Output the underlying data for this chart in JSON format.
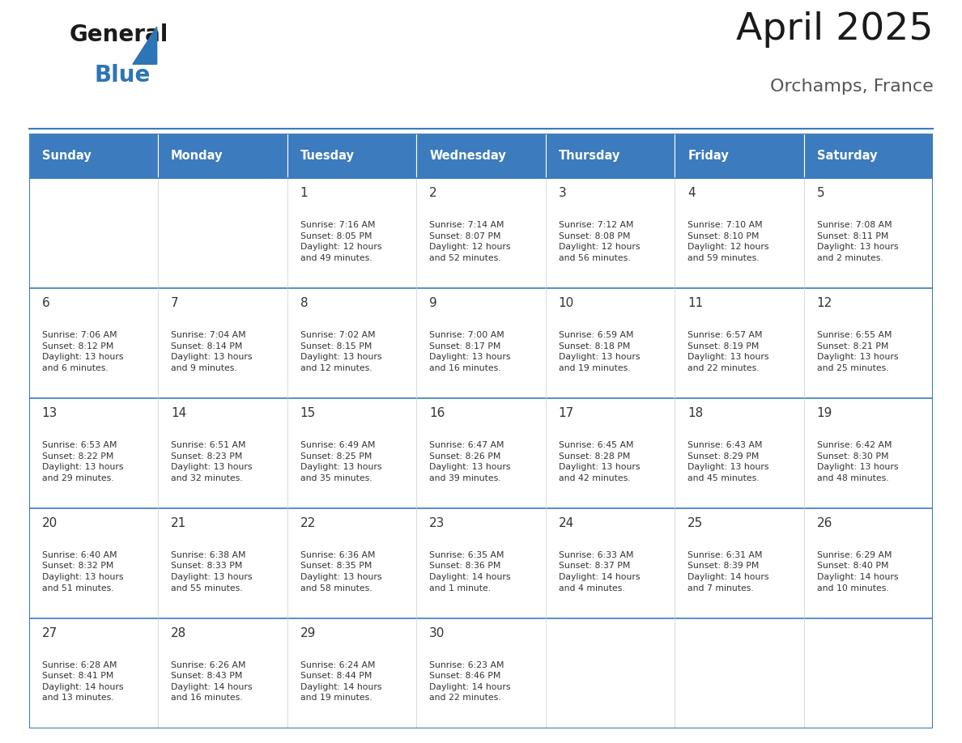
{
  "title": "April 2025",
  "subtitle": "Orchamps, France",
  "header_color": "#3B7BBE",
  "header_text_color": "#FFFFFF",
  "border_color": "#3B7BBE",
  "day_names": [
    "Sunday",
    "Monday",
    "Tuesday",
    "Wednesday",
    "Thursday",
    "Friday",
    "Saturday"
  ],
  "weeks": [
    [
      {
        "day": "",
        "info": ""
      },
      {
        "day": "",
        "info": ""
      },
      {
        "day": "1",
        "info": "Sunrise: 7:16 AM\nSunset: 8:05 PM\nDaylight: 12 hours\nand 49 minutes."
      },
      {
        "day": "2",
        "info": "Sunrise: 7:14 AM\nSunset: 8:07 PM\nDaylight: 12 hours\nand 52 minutes."
      },
      {
        "day": "3",
        "info": "Sunrise: 7:12 AM\nSunset: 8:08 PM\nDaylight: 12 hours\nand 56 minutes."
      },
      {
        "day": "4",
        "info": "Sunrise: 7:10 AM\nSunset: 8:10 PM\nDaylight: 12 hours\nand 59 minutes."
      },
      {
        "day": "5",
        "info": "Sunrise: 7:08 AM\nSunset: 8:11 PM\nDaylight: 13 hours\nand 2 minutes."
      }
    ],
    [
      {
        "day": "6",
        "info": "Sunrise: 7:06 AM\nSunset: 8:12 PM\nDaylight: 13 hours\nand 6 minutes."
      },
      {
        "day": "7",
        "info": "Sunrise: 7:04 AM\nSunset: 8:14 PM\nDaylight: 13 hours\nand 9 minutes."
      },
      {
        "day": "8",
        "info": "Sunrise: 7:02 AM\nSunset: 8:15 PM\nDaylight: 13 hours\nand 12 minutes."
      },
      {
        "day": "9",
        "info": "Sunrise: 7:00 AM\nSunset: 8:17 PM\nDaylight: 13 hours\nand 16 minutes."
      },
      {
        "day": "10",
        "info": "Sunrise: 6:59 AM\nSunset: 8:18 PM\nDaylight: 13 hours\nand 19 minutes."
      },
      {
        "day": "11",
        "info": "Sunrise: 6:57 AM\nSunset: 8:19 PM\nDaylight: 13 hours\nand 22 minutes."
      },
      {
        "day": "12",
        "info": "Sunrise: 6:55 AM\nSunset: 8:21 PM\nDaylight: 13 hours\nand 25 minutes."
      }
    ],
    [
      {
        "day": "13",
        "info": "Sunrise: 6:53 AM\nSunset: 8:22 PM\nDaylight: 13 hours\nand 29 minutes."
      },
      {
        "day": "14",
        "info": "Sunrise: 6:51 AM\nSunset: 8:23 PM\nDaylight: 13 hours\nand 32 minutes."
      },
      {
        "day": "15",
        "info": "Sunrise: 6:49 AM\nSunset: 8:25 PM\nDaylight: 13 hours\nand 35 minutes."
      },
      {
        "day": "16",
        "info": "Sunrise: 6:47 AM\nSunset: 8:26 PM\nDaylight: 13 hours\nand 39 minutes."
      },
      {
        "day": "17",
        "info": "Sunrise: 6:45 AM\nSunset: 8:28 PM\nDaylight: 13 hours\nand 42 minutes."
      },
      {
        "day": "18",
        "info": "Sunrise: 6:43 AM\nSunset: 8:29 PM\nDaylight: 13 hours\nand 45 minutes."
      },
      {
        "day": "19",
        "info": "Sunrise: 6:42 AM\nSunset: 8:30 PM\nDaylight: 13 hours\nand 48 minutes."
      }
    ],
    [
      {
        "day": "20",
        "info": "Sunrise: 6:40 AM\nSunset: 8:32 PM\nDaylight: 13 hours\nand 51 minutes."
      },
      {
        "day": "21",
        "info": "Sunrise: 6:38 AM\nSunset: 8:33 PM\nDaylight: 13 hours\nand 55 minutes."
      },
      {
        "day": "22",
        "info": "Sunrise: 6:36 AM\nSunset: 8:35 PM\nDaylight: 13 hours\nand 58 minutes."
      },
      {
        "day": "23",
        "info": "Sunrise: 6:35 AM\nSunset: 8:36 PM\nDaylight: 14 hours\nand 1 minute."
      },
      {
        "day": "24",
        "info": "Sunrise: 6:33 AM\nSunset: 8:37 PM\nDaylight: 14 hours\nand 4 minutes."
      },
      {
        "day": "25",
        "info": "Sunrise: 6:31 AM\nSunset: 8:39 PM\nDaylight: 14 hours\nand 7 minutes."
      },
      {
        "day": "26",
        "info": "Sunrise: 6:29 AM\nSunset: 8:40 PM\nDaylight: 14 hours\nand 10 minutes."
      }
    ],
    [
      {
        "day": "27",
        "info": "Sunrise: 6:28 AM\nSunset: 8:41 PM\nDaylight: 14 hours\nand 13 minutes."
      },
      {
        "day": "28",
        "info": "Sunrise: 6:26 AM\nSunset: 8:43 PM\nDaylight: 14 hours\nand 16 minutes."
      },
      {
        "day": "29",
        "info": "Sunrise: 6:24 AM\nSunset: 8:44 PM\nDaylight: 14 hours\nand 19 minutes."
      },
      {
        "day": "30",
        "info": "Sunrise: 6:23 AM\nSunset: 8:46 PM\nDaylight: 14 hours\nand 22 minutes."
      },
      {
        "day": "",
        "info": ""
      },
      {
        "day": "",
        "info": ""
      },
      {
        "day": "",
        "info": ""
      }
    ]
  ]
}
